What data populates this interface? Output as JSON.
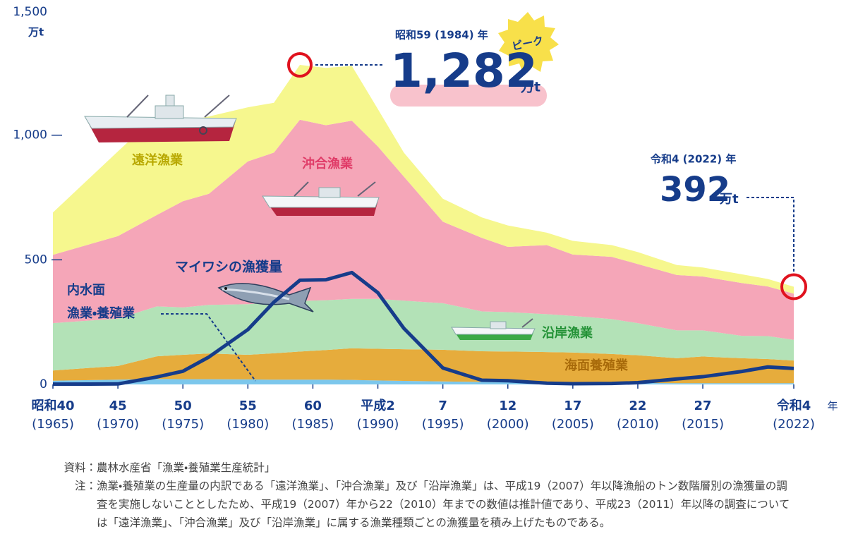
{
  "chart_data": {
    "type": "stacked_area",
    "x": [
      1965,
      1970,
      1973,
      1975,
      1977,
      1980,
      1982,
      1984,
      1986,
      1988,
      1990,
      1992,
      1995,
      1998,
      2000,
      2003,
      2005,
      2008,
      2010,
      2013,
      2015,
      2018,
      2020,
      2022
    ],
    "xlim": [
      1965,
      2022
    ],
    "xticks": [
      {
        "value": 1965,
        "label": "昭和40",
        "year_label": "(1965)"
      },
      {
        "value": 1970,
        "label": "45",
        "year_label": "(1970)"
      },
      {
        "value": 1975,
        "label": "50",
        "year_label": "(1975)"
      },
      {
        "value": 1980,
        "label": "55",
        "year_label": "(1980)"
      },
      {
        "value": 1985,
        "label": "60",
        "year_label": "(1985)"
      },
      {
        "value": 1990,
        "label": "平成2",
        "year_label": "(1990)"
      },
      {
        "value": 1995,
        "label": "7",
        "year_label": "(1995)"
      },
      {
        "value": 2000,
        "label": "12",
        "year_label": "(2000)"
      },
      {
        "value": 2005,
        "label": "17",
        "year_label": "(2005)"
      },
      {
        "value": 2010,
        "label": "22",
        "year_label": "(2010)"
      },
      {
        "value": 2015,
        "label": "27",
        "year_label": "(2015)"
      },
      {
        "value": 2022,
        "label": "令和4",
        "year_label": "(2022)"
      }
    ],
    "x_unit": "年",
    "ylim": [
      0,
      1500
    ],
    "yticks": [
      0,
      500,
      {
        "value": 1000,
        "label": "1,000"
      },
      {
        "value": 1500,
        "label": "1,500"
      }
    ],
    "y_unit": "万t",
    "series": [
      {
        "name": "内水面",
        "name_line2": "漁業・養殖業",
        "color": "#7cc7ec",
        "values": [
          15,
          19,
          22,
          21,
          21,
          20,
          19,
          19,
          19,
          18,
          16,
          14,
          12,
          10,
          9,
          8,
          7,
          7,
          6,
          5,
          5,
          5,
          5,
          5
        ]
      },
      {
        "name": "海面養殖業",
        "color": "#e6ac3c",
        "values": [
          41,
          55,
          91,
          98,
          103,
          99,
          106,
          113,
          119,
          127,
          127,
          127,
          127,
          123,
          123,
          122,
          121,
          115,
          111,
          100,
          107,
          100,
          97,
          91
        ]
      },
      {
        "name": "沿岸漁業",
        "color": "#b3e2b7",
        "values": [
          190,
          190,
          200,
          190,
          195,
          203,
          204,
          203,
          200,
          198,
          200,
          195,
          187,
          160,
          158,
          152,
          147,
          140,
          129,
          112,
          105,
          90,
          92,
          83
        ]
      },
      {
        "name": "沖合漁業",
        "color": "#f5a6b8",
        "values": [
          274,
          331,
          367,
          426,
          446,
          573,
          601,
          727,
          702,
          715,
          612,
          498,
          327,
          295,
          262,
          277,
          246,
          250,
          237,
          222,
          216,
          212,
          199,
          185
        ]
      },
      {
        "name": "遠洋漁業",
        "color": "#f6f78e",
        "values": [
          170,
          340,
          400,
          320,
          310,
          217,
          200,
          220,
          230,
          220,
          150,
          96,
          92,
          82,
          86,
          50,
          55,
          47,
          48,
          40,
          36,
          35,
          30,
          28
        ]
      },
      {
        "name": "マイワシの漁獲量",
        "type": "line",
        "color": "#163c8a",
        "values": [
          1,
          2,
          30,
          53,
          110,
          220,
          330,
          418,
          420,
          449,
          368,
          225,
          66,
          17,
          15,
          5,
          3,
          4,
          7,
          22,
          31,
          52,
          70,
          64
        ]
      }
    ],
    "annotations": [
      {
        "year": 1984,
        "year_label": "昭和59 (1984) 年",
        "badge": "ピーク",
        "value": 1282,
        "label": "1,282",
        "unit": "万t"
      },
      {
        "year": 2022,
        "year_label": "令和4 (2022) 年",
        "value": 392,
        "label": "392",
        "unit": "万t"
      }
    ],
    "source": {
      "label": "資料：",
      "text": "農林水産省「漁業・養殖業生産統計」"
    },
    "note": {
      "label": "注：",
      "text": "漁業・養殖業の生産量の内訳である「遠洋漁業」、「沖合漁業」及び「沿岸漁業」は、平成19（2007）年以降漁船のトン数階層別の漁獲量の調査を実施しないこととしたため、平成19（2007）年から22（2010）年までの数値は推計値であり、平成23（2011）年以降の調査については「遠洋漁業」、「沖合漁業」及び「沿岸漁業」に属する漁業種類ごとの漁獲量を積み上げたものである。"
    }
  }
}
